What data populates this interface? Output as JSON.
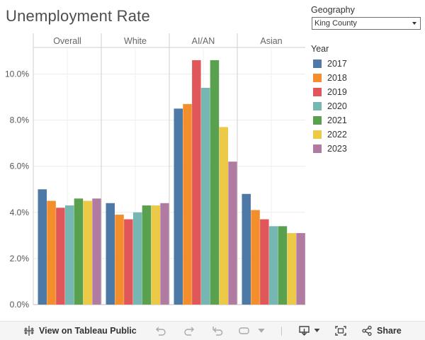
{
  "header": {
    "title": "Unemployment Rate"
  },
  "filter": {
    "label": "Geography",
    "selected": "King County"
  },
  "legend": {
    "title": "Year",
    "items": [
      {
        "label": "2017",
        "color": "#4e79a7"
      },
      {
        "label": "2018",
        "color": "#f28e2b"
      },
      {
        "label": "2019",
        "color": "#e15759"
      },
      {
        "label": "2020",
        "color": "#76b7b2"
      },
      {
        "label": "2021",
        "color": "#59a14f"
      },
      {
        "label": "2022",
        "color": "#edc948"
      },
      {
        "label": "2023",
        "color": "#b07aa1"
      }
    ]
  },
  "chart_data": {
    "type": "bar",
    "title": "Unemployment Rate",
    "xlabel": "",
    "ylabel": "",
    "ylim": [
      0,
      11.4
    ],
    "yticks": [
      0,
      2,
      4,
      6,
      8,
      10
    ],
    "ytick_labels": [
      "0.0%",
      "2.0%",
      "4.0%",
      "6.0%",
      "8.0%",
      "10.0%"
    ],
    "grid": true,
    "legend_position": "right",
    "panels": [
      "Overall",
      "White",
      "AI/AN",
      "Asian"
    ],
    "series_names": [
      "2017",
      "2018",
      "2019",
      "2020",
      "2021",
      "2022",
      "2023"
    ],
    "values": [
      [
        5.0,
        4.5,
        4.2,
        4.3,
        4.6,
        4.5,
        4.6
      ],
      [
        4.4,
        3.9,
        3.7,
        4.0,
        4.3,
        4.3,
        4.4
      ],
      [
        8.5,
        8.7,
        10.6,
        9.4,
        10.6,
        7.7,
        6.2
      ],
      [
        4.8,
        4.1,
        3.7,
        3.4,
        3.4,
        3.1,
        3.1
      ]
    ]
  },
  "footer": {
    "view_label": "View on Tableau Public",
    "share_label": "Share"
  }
}
